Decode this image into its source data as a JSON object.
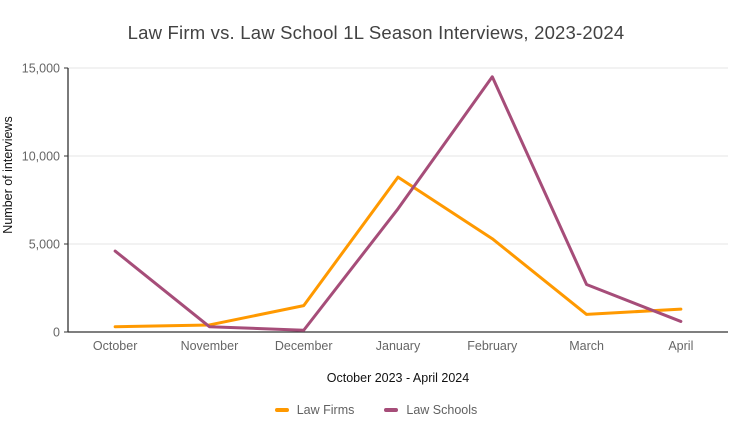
{
  "title": "Law Firm vs. Law School 1L Season Interviews, 2023-2024",
  "chart_data": {
    "type": "line",
    "categories": [
      "October",
      "November",
      "December",
      "January",
      "February",
      "March",
      "April"
    ],
    "series": [
      {
        "name": "Law Firms",
        "color": "#ff9900",
        "values": [
          300,
          400,
          1500,
          8800,
          5300,
          1000,
          1300
        ]
      },
      {
        "name": "Law Schools",
        "color": "#a64d79",
        "values": [
          4600,
          300,
          100,
          7000,
          14500,
          2700,
          600
        ]
      }
    ],
    "title": "Law Firm vs. Law School 1L Season Interviews, 2023-2024",
    "xlabel": "October 2023 - April 2024",
    "ylabel": "Number of interviews",
    "ylim": [
      0,
      15000
    ],
    "yticks": [
      0,
      5000,
      10000,
      15000
    ],
    "ytick_labels": [
      "0",
      "5,000",
      "10,000",
      "15,000"
    ],
    "grid": "horizontal",
    "legend_position": "bottom"
  },
  "colors": {
    "background": "#ffffff",
    "title_text": "#424242",
    "tick_text": "#666666",
    "axis_line": "#333333",
    "gridline": "#e6e6e6",
    "axis_title_text": "#111111",
    "legend_text": "#616161"
  }
}
